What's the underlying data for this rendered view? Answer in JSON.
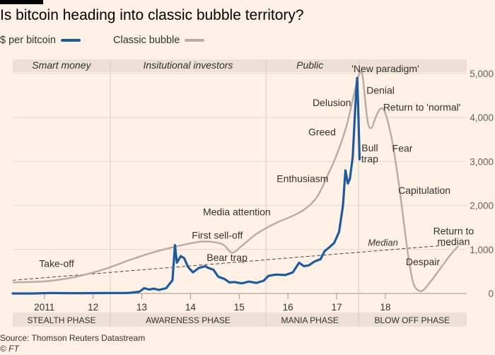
{
  "title": "Is bitcoin heading into classic bubble territory?",
  "legend": [
    {
      "label": "$ per bitcoin",
      "color": "#1f5a9e"
    },
    {
      "label": "Classic bubble",
      "color": "#b8aea5"
    }
  ],
  "source": "Source: Thomson Reuters Datastream",
  "copyright": "© FT",
  "chart_data": {
    "type": "line",
    "xlim": [
      2010.6,
      2019.92
    ],
    "ylim": [
      0,
      5000
    ],
    "y_ticks": [
      0,
      1000,
      2000,
      3000,
      4000,
      5000
    ],
    "y_tick_labels": [
      "0",
      "1,000",
      "2,000",
      "3,000",
      "4,000",
      "5,000"
    ],
    "x_ticks": [
      {
        "x": 2011.25,
        "label": "2011"
      },
      {
        "x": 2012.25,
        "label": "12"
      },
      {
        "x": 2013.25,
        "label": "13"
      },
      {
        "x": 2014.25,
        "label": "14"
      },
      {
        "x": 2015.25,
        "label": "15"
      },
      {
        "x": 2016.25,
        "label": "16"
      },
      {
        "x": 2017.25,
        "label": "17"
      },
      {
        "x": 2018.25,
        "label": "18"
      }
    ],
    "dividers": [
      2012.6,
      2015.8,
      2017.7
    ],
    "audience_labels": [
      {
        "text": "Smart money",
        "x": 2011.6
      },
      {
        "text": "Insitutional investors",
        "x": 2014.2
      },
      {
        "text": "Public",
        "x": 2016.7
      }
    ],
    "phases": [
      {
        "text": "STEALTH PHASE",
        "x": 2011.6
      },
      {
        "text": "AWARENESS PHASE",
        "x": 2014.2
      },
      {
        "text": "MANIA PHASE",
        "x": 2016.7
      },
      {
        "text": "BLOW OFF PHASE",
        "x": 2018.8
      }
    ],
    "series": [
      {
        "name": "$ per bitcoin",
        "color": "#1f5a9e",
        "points": [
          [
            2010.6,
            0
          ],
          [
            2011.0,
            0
          ],
          [
            2011.4,
            12
          ],
          [
            2011.6,
            8
          ],
          [
            2012.0,
            6
          ],
          [
            2012.5,
            10
          ],
          [
            2012.9,
            12
          ],
          [
            2013.0,
            15
          ],
          [
            2013.2,
            40
          ],
          [
            2013.3,
            120
          ],
          [
            2013.4,
            90
          ],
          [
            2013.5,
            110
          ],
          [
            2013.6,
            80
          ],
          [
            2013.75,
            120
          ],
          [
            2013.88,
            300
          ],
          [
            2013.93,
            1100
          ],
          [
            2013.97,
            700
          ],
          [
            2014.05,
            850
          ],
          [
            2014.12,
            800
          ],
          [
            2014.2,
            600
          ],
          [
            2014.3,
            480
          ],
          [
            2014.42,
            580
          ],
          [
            2014.55,
            620
          ],
          [
            2014.62,
            580
          ],
          [
            2014.72,
            540
          ],
          [
            2014.82,
            380
          ],
          [
            2014.95,
            330
          ],
          [
            2015.05,
            250
          ],
          [
            2015.15,
            260
          ],
          [
            2015.3,
            230
          ],
          [
            2015.45,
            270
          ],
          [
            2015.6,
            240
          ],
          [
            2015.75,
            290
          ],
          [
            2015.85,
            400
          ],
          [
            2016.0,
            430
          ],
          [
            2016.2,
            420
          ],
          [
            2016.35,
            480
          ],
          [
            2016.48,
            700
          ],
          [
            2016.58,
            620
          ],
          [
            2016.68,
            640
          ],
          [
            2016.8,
            730
          ],
          [
            2016.92,
            780
          ],
          [
            2017.0,
            960
          ],
          [
            2017.1,
            1050
          ],
          [
            2017.2,
            1150
          ],
          [
            2017.3,
            1400
          ],
          [
            2017.38,
            2000
          ],
          [
            2017.43,
            2800
          ],
          [
            2017.48,
            2500
          ],
          [
            2017.52,
            2600
          ],
          [
            2017.58,
            3100
          ],
          [
            2017.63,
            4200
          ],
          [
            2017.67,
            4900
          ],
          [
            2017.69,
            4300
          ],
          [
            2017.72,
            3050
          ]
        ]
      },
      {
        "name": "Classic bubble",
        "color": "#b8aea5",
        "points": [
          [
            2010.6,
            250
          ],
          [
            2011.3,
            280
          ],
          [
            2011.9,
            380
          ],
          [
            2012.5,
            560
          ],
          [
            2013.0,
            760
          ],
          [
            2013.5,
            940
          ],
          [
            2014.0,
            1080
          ],
          [
            2014.5,
            1180
          ],
          [
            2014.9,
            1120
          ],
          [
            2015.1,
            930
          ],
          [
            2015.3,
            1080
          ],
          [
            2015.6,
            1350
          ],
          [
            2016.0,
            1600
          ],
          [
            2016.3,
            1740
          ],
          [
            2016.6,
            1920
          ],
          [
            2016.85,
            2200
          ],
          [
            2017.05,
            2650
          ],
          [
            2017.25,
            3150
          ],
          [
            2017.45,
            3800
          ],
          [
            2017.6,
            4500
          ],
          [
            2017.7,
            4950
          ],
          [
            2017.78,
            4950
          ],
          [
            2017.88,
            3950
          ],
          [
            2017.96,
            3760
          ],
          [
            2018.05,
            4000
          ],
          [
            2018.15,
            4200
          ],
          [
            2018.25,
            4100
          ],
          [
            2018.4,
            3400
          ],
          [
            2018.55,
            2300
          ],
          [
            2018.7,
            1000
          ],
          [
            2018.82,
            250
          ],
          [
            2018.95,
            60
          ],
          [
            2019.05,
            100
          ],
          [
            2019.2,
            300
          ],
          [
            2019.4,
            600
          ],
          [
            2019.6,
            900
          ],
          [
            2019.75,
            1080
          ]
        ]
      }
    ],
    "median": {
      "label": "Median",
      "from": [
        2010.6,
        300
      ],
      "to": [
        2019.75,
        1120
      ]
    },
    "annotations": [
      {
        "text": "Take-off",
        "x": 2011.5,
        "y": 680
      },
      {
        "text": "First sell-off",
        "x": 2014.8,
        "y": 1330
      },
      {
        "text": "Bear trap",
        "x": 2015.0,
        "y": 820
      },
      {
        "text": "Media attention",
        "x": 2015.2,
        "y": 1860
      },
      {
        "text": "Enthusiasm",
        "x": 2016.55,
        "y": 2610
      },
      {
        "text": "Greed",
        "x": 2016.95,
        "y": 3670
      },
      {
        "text": "Delusion",
        "x": 2017.15,
        "y": 4340
      },
      {
        "text": "'New paradigm'",
        "x": 2018.25,
        "y": 5110
      },
      {
        "text": "Denial",
        "x": 2018.15,
        "y": 4620
      },
      {
        "text": "Return to 'normal'",
        "x": 2019.0,
        "y": 4240
      },
      {
        "text": "Bull",
        "x": 2017.93,
        "y": 3310
      },
      {
        "text": "trap",
        "x": 2017.93,
        "y": 3060
      },
      {
        "text": "Fear",
        "x": 2018.6,
        "y": 3300
      },
      {
        "text": "Capitulation",
        "x": 2019.05,
        "y": 2350
      },
      {
        "text": "Return to",
        "x": 2019.65,
        "y": 1420
      },
      {
        "text": "median",
        "x": 2019.65,
        "y": 1180
      },
      {
        "text": "Despair",
        "x": 2019.02,
        "y": 720
      }
    ]
  }
}
